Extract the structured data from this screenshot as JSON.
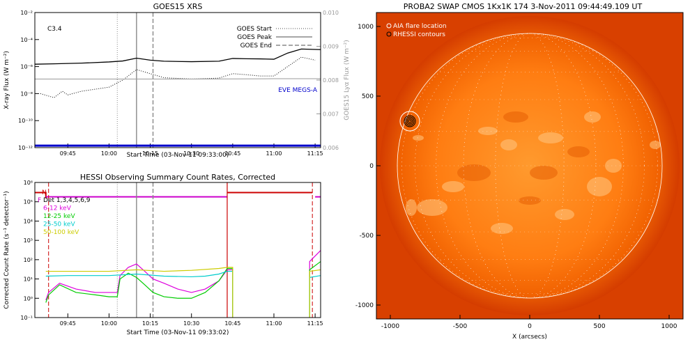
{
  "chart_data": [
    {
      "type": "line",
      "title": "GOES15 XRS",
      "xlabel": "Start Time (03-Nov-11 09:33:00)",
      "ylabel": "X-ray Flux (W m⁻²)",
      "ylabel_right": "GOES15 Lyα Flux (W m⁻²)",
      "annotation": "C3.4",
      "x_ticks": [
        "09:45",
        "10:00",
        "10:15",
        "10:30",
        "10:45",
        "11:00",
        "11:15"
      ],
      "y_ticks": [
        "10⁻²",
        "10⁻⁴",
        "10⁻⁶",
        "10⁻⁸",
        "10⁻¹⁰",
        "10⁻¹²"
      ],
      "y2_ticks": [
        "0.010",
        "0.009",
        "0.008",
        "0.007",
        "0.006"
      ],
      "xlim": [
        "09:33",
        "11:17"
      ],
      "ylim": [
        1e-12,
        0.01
      ],
      "y_scale": "log",
      "legend": [
        "GOES Start",
        "GOES Peak",
        "GOES End"
      ],
      "legend_placement": "top-right",
      "extra_label": "EVE MEGS-A",
      "vlines": {
        "start": "10:03",
        "peak": "10:10",
        "end": "10:16"
      },
      "colors": {
        "long": "#000000",
        "short": "#000000",
        "lya": "#999999",
        "eve": "#0000cc",
        "peak": "#888888",
        "end": "#888888"
      },
      "series": [
        {
          "name": "",
          "style": "solid",
          "x": [
            "09:33",
            "09:40",
            "09:50",
            "10:00",
            "10:05",
            "10:10",
            "10:15",
            "10:20",
            "10:30",
            "10:40",
            "10:45",
            "10:50",
            "10:55",
            "11:00",
            "11:05",
            "11:10",
            "11:17"
          ],
          "y": [
            1.5e-06,
            1.6e-06,
            1.8e-06,
            2.2e-06,
            2.6e-06,
            4.2e-06,
            3e-06,
            2.5e-06,
            2.3e-06,
            2.5e-06,
            4e-06,
            3.8e-06,
            3.7e-06,
            3.5e-06,
            1e-05,
            2e-05,
            1.8e-05
          ]
        },
        {
          "name": "",
          "style": "dotted",
          "x": [
            "09:35",
            "09:40",
            "09:43",
            "09:45",
            "09:50",
            "10:00",
            "10:05",
            "10:10",
            "10:15",
            "10:20",
            "10:30",
            "10:40",
            "10:45",
            "10:50",
            "10:55",
            "11:00",
            "11:05",
            "11:10",
            "11:15"
          ],
          "y": [
            1e-08,
            5e-09,
            1.5e-08,
            8e-09,
            1.5e-08,
            3e-08,
            1e-07,
            6e-07,
            3e-07,
            1.5e-07,
            1.2e-07,
            1.4e-07,
            3e-07,
            2.5e-07,
            2e-07,
            2e-07,
            1e-06,
            5e-06,
            3e-06
          ]
        },
        {
          "name": "",
          "style": "solid-thin",
          "x": [
            "09:33",
            "10:00",
            "10:30",
            "11:00",
            "11:17"
          ],
          "y": [
            0.00803,
            0.00803,
            0.00803,
            0.00804,
            0.00804
          ]
        },
        {
          "name": "EVE MEGS-A",
          "style": "solid-thick",
          "x": [
            "09:33",
            "11:17"
          ],
          "y": [
            1.4e-12,
            1.4e-12
          ]
        }
      ]
    },
    {
      "type": "line",
      "title": "HESSI Observing Summary Count Rates, Corrected",
      "xlabel": "Start Time (03-Nov-11 09:33:02)",
      "ylabel": "Corrected Count Rate (s⁻¹ detector⁻¹)",
      "x_ticks": [
        "09:45",
        "10:00",
        "10:15",
        "10:30",
        "10:45",
        "11:00",
        "11:15"
      ],
      "y_ticks": [
        "10⁶",
        "10⁵",
        "10⁴",
        "10³",
        "10²",
        "10¹",
        "10⁰",
        "10⁻¹"
      ],
      "xlim": [
        "09:33",
        "11:17"
      ],
      "ylim": [
        0.1,
        1000000.0
      ],
      "y_scale": "log",
      "flag_labels": [
        "N",
        "F"
      ],
      "legend": [
        "Det 1,3,4,5,6,9",
        "6-12 keV",
        "12-25 keV",
        "25-50 keV",
        "50-100 keV"
      ],
      "legend_colors": [
        "#000000",
        "#dd00dd",
        "#00cc00",
        "#00cccc",
        "#cccc00"
      ],
      "legend_placement": "top-left",
      "series": [
        {
          "name": "6-12 keV",
          "color": "#dd00dd",
          "x": [
            "09:37",
            "09:38",
            "09:42",
            "09:48",
            "09:55",
            "10:00",
            "10:03",
            "10:04",
            "10:07",
            "10:10",
            "10:13",
            "10:16",
            "10:20",
            "10:25",
            "10:30",
            "10:35",
            "10:40",
            "10:43"
          ],
          "y": [
            0.8,
            2,
            6,
            3,
            2,
            2,
            2,
            15,
            40,
            60,
            25,
            10,
            6,
            3,
            2,
            3,
            8,
            30
          ]
        },
        {
          "name": "12-25 keV",
          "color": "#00cc00",
          "x": [
            "09:37",
            "09:38",
            "09:42",
            "09:48",
            "09:55",
            "10:00",
            "10:03",
            "10:04",
            "10:07",
            "10:10",
            "10:13",
            "10:16",
            "10:20",
            "10:25",
            "10:30",
            "10:35",
            "10:40",
            "10:43"
          ],
          "y": [
            0.6,
            1.5,
            5,
            2,
            1.5,
            1.2,
            1.2,
            10,
            20,
            12,
            5,
            2,
            1.2,
            1,
            1,
            2,
            8,
            35
          ]
        },
        {
          "name": "25-50 keV",
          "color": "#00cccc",
          "x": [
            "09:37",
            "09:45",
            "10:00",
            "10:10",
            "10:20",
            "10:30",
            "10:35",
            "10:40",
            "10:43"
          ],
          "y": [
            14,
            15,
            15,
            18,
            14,
            13,
            14,
            18,
            25
          ]
        },
        {
          "name": "50-100 keV",
          "color": "#cccc00",
          "x": [
            "09:37",
            "09:45",
            "10:00",
            "10:10",
            "10:20",
            "10:30",
            "10:40",
            "10:43"
          ],
          "y": [
            25,
            25,
            25,
            30,
            25,
            28,
            35,
            40
          ]
        }
      ],
      "colors": {
        "flag_n": "#cc0000",
        "flag_f": "#cc00cc",
        "peak": "#888888",
        "end": "#888888"
      }
    },
    {
      "type": "heatmap",
      "title": "PROBA2 SWAP CMOS 1Kx1K 174  3-Nov-2011 09:44:49.109 UT",
      "xlabel": "X (arcsecs)",
      "x_ticks": [
        "-1000",
        "-500",
        "0",
        "500",
        "1000"
      ],
      "y_ticks": [
        "1000",
        "500",
        "0",
        "-500",
        "-1000"
      ],
      "xlim": [
        -1100,
        1100
      ],
      "ylim": [
        -1100,
        1100
      ],
      "legend": [
        "AIA flare location",
        "RHESSI contours"
      ],
      "legend_placement": "top-left",
      "flare_location": {
        "x": -860,
        "y": 320
      },
      "colors": {
        "sun_core": "#ff8c1a",
        "sun_edge": "#ee5a00",
        "background": "#d84000",
        "grid": "#ffffff"
      }
    }
  ]
}
